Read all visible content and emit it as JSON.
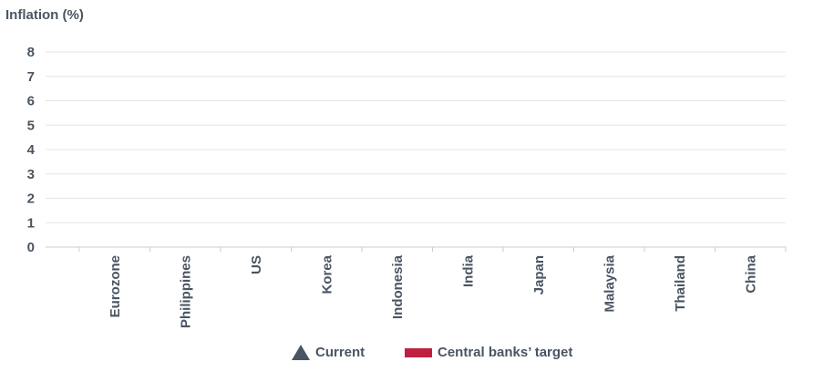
{
  "chart_data": {
    "type": "scatter",
    "ylabel": "Inflation (%)",
    "categories": [
      "Eurozone",
      "Philippines",
      "US",
      "Korea",
      "Indonesia",
      "India",
      "Japan",
      "Malaysia",
      "Thailand",
      "China"
    ],
    "yticks": [
      0,
      1,
      2,
      3,
      4,
      5,
      6,
      7,
      8
    ],
    "ylim": [
      0,
      8
    ],
    "grid": true,
    "legend_position": "bottom",
    "series": [
      {
        "name": "Current",
        "marker": "triangle",
        "color": "#4a5563",
        "values": []
      },
      {
        "name": "Central banks’ target",
        "marker": "bar",
        "color": "#c0203f",
        "values": []
      }
    ]
  }
}
